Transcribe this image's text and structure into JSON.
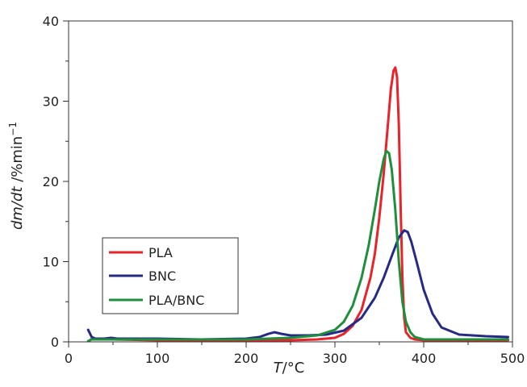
{
  "chart_data": {
    "type": "line",
    "title": "",
    "x_axis": {
      "label_italic": "T",
      "label_rest": "/°C",
      "range": [
        0,
        500
      ],
      "ticks": [
        0,
        100,
        200,
        300,
        400,
        500
      ],
      "tick_labels": [
        "0",
        "100",
        "200",
        "300",
        "400",
        "500"
      ]
    },
    "y_axis": {
      "label_italic_1": "dm/dt",
      "label_rest": " /%min",
      "label_sup": "−1",
      "range": [
        0,
        40
      ],
      "ticks": [
        0,
        10,
        20,
        30,
        40
      ],
      "tick_labels": [
        "0",
        "10",
        "20",
        "30",
        "40"
      ]
    },
    "grid": false,
    "legend": {
      "placement": "lower-left",
      "entries": [
        "PLA",
        "BNC",
        "PLA/BNC"
      ]
    },
    "series": [
      {
        "name": "PLA",
        "color": "#e8232a",
        "x": [
          25,
          50,
          100,
          150,
          200,
          250,
          280,
          300,
          310,
          320,
          330,
          340,
          345,
          350,
          355,
          360,
          363,
          366,
          368,
          370,
          372,
          374,
          376,
          378,
          380,
          385,
          390,
          400,
          450,
          495
        ],
        "y": [
          0.3,
          0.3,
          0.2,
          0.2,
          0.2,
          0.2,
          0.3,
          0.5,
          1.0,
          2.0,
          4.0,
          8.0,
          11.0,
          15.5,
          21.0,
          27.5,
          31.5,
          33.8,
          34.2,
          33.0,
          27.0,
          17.0,
          8.0,
          3.0,
          1.2,
          0.5,
          0.3,
          0.2,
          0.2,
          0.2
        ]
      },
      {
        "name": "BNC",
        "color": "#262a86",
        "x": [
          22,
          26,
          30,
          40,
          48,
          55,
          100,
          150,
          200,
          215,
          225,
          232,
          240,
          250,
          270,
          290,
          310,
          330,
          345,
          355,
          365,
          372,
          378,
          382,
          386,
          392,
          400,
          410,
          420,
          440,
          470,
          495
        ],
        "y": [
          1.5,
          0.6,
          0.4,
          0.4,
          0.5,
          0.4,
          0.4,
          0.3,
          0.4,
          0.6,
          1.0,
          1.2,
          1.0,
          0.8,
          0.8,
          0.9,
          1.4,
          3.0,
          5.5,
          8.0,
          11.0,
          13.0,
          13.9,
          13.7,
          12.5,
          10.0,
          6.5,
          3.5,
          1.8,
          0.9,
          0.7,
          0.6
        ]
      },
      {
        "name": "PLA/BNC",
        "color": "#1e8f3c",
        "x": [
          22,
          26,
          50,
          100,
          150,
          200,
          250,
          280,
          300,
          310,
          320,
          330,
          338,
          345,
          350,
          355,
          358,
          361,
          364,
          368,
          372,
          376,
          380,
          385,
          390,
          400,
          420,
          450,
          495
        ],
        "y": [
          0.1,
          0.3,
          0.3,
          0.3,
          0.3,
          0.3,
          0.5,
          0.8,
          1.5,
          2.5,
          4.5,
          8.0,
          12.0,
          16.5,
          20.0,
          22.8,
          23.8,
          23.5,
          21.5,
          16.5,
          10.0,
          5.0,
          2.5,
          1.2,
          0.6,
          0.3,
          0.3,
          0.3,
          0.3
        ]
      }
    ]
  }
}
